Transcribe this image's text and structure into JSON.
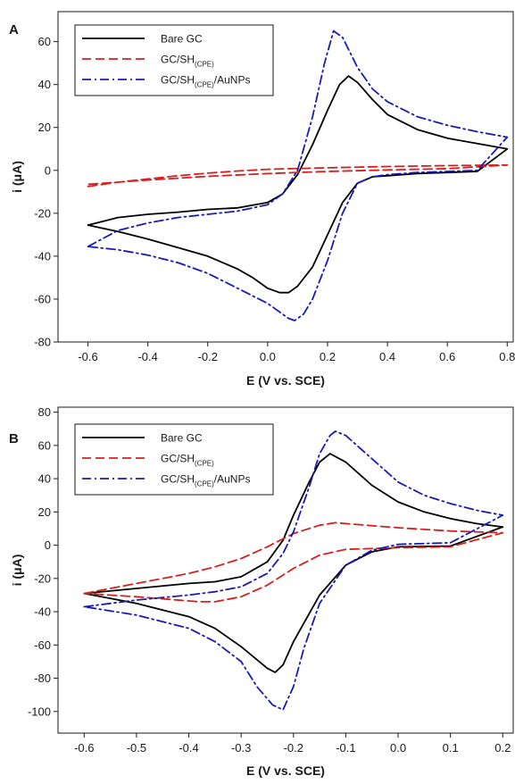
{
  "chart_data": [
    {
      "type": "line",
      "panel_label": "A",
      "xlabel": "E (V vs. SCE)",
      "ylabel": "i (μA)",
      "xlim": [
        -0.7,
        0.82
      ],
      "ylim": [
        -80,
        74
      ],
      "xticks": [
        -0.6,
        -0.4,
        -0.2,
        0.0,
        0.2,
        0.4,
        0.6,
        0.8
      ],
      "xtick_labels": [
        "-0.6",
        "-0.4",
        "-0.2",
        "0.0",
        "0.2",
        "0.4",
        "0.6",
        "0.8"
      ],
      "yticks": [
        -80,
        -60,
        -40,
        -20,
        0,
        20,
        40,
        60
      ],
      "ytick_labels": [
        "-80",
        "-60",
        "-40",
        "-20",
        "0",
        "20",
        "40",
        "60"
      ],
      "legend_position": "top-left",
      "grid": false,
      "series": [
        {
          "name": "Bare GC",
          "color": "#000000",
          "dash": "solid",
          "points": [
            [
              -0.6,
              -25.5
            ],
            [
              -0.5,
              -22
            ],
            [
              -0.4,
              -20.5
            ],
            [
              -0.3,
              -19.5
            ],
            [
              -0.2,
              -18.2
            ],
            [
              -0.1,
              -17.5
            ],
            [
              0.0,
              -15
            ],
            [
              0.05,
              -11
            ],
            [
              0.1,
              -2
            ],
            [
              0.15,
              12
            ],
            [
              0.2,
              28
            ],
            [
              0.24,
              40
            ],
            [
              0.27,
              44
            ],
            [
              0.3,
              41
            ],
            [
              0.35,
              33
            ],
            [
              0.4,
              26
            ],
            [
              0.5,
              19
            ],
            [
              0.6,
              15
            ],
            [
              0.7,
              12.5
            ],
            [
              0.8,
              10
            ],
            [
              0.7,
              -0.5
            ],
            [
              0.6,
              -1
            ],
            [
              0.5,
              -1.5
            ],
            [
              0.4,
              -2.5
            ],
            [
              0.35,
              -3
            ],
            [
              0.3,
              -6
            ],
            [
              0.25,
              -15
            ],
            [
              0.2,
              -30
            ],
            [
              0.15,
              -45
            ],
            [
              0.1,
              -54
            ],
            [
              0.07,
              -57
            ],
            [
              0.04,
              -57
            ],
            [
              0.0,
              -55
            ],
            [
              -0.05,
              -50
            ],
            [
              -0.1,
              -46
            ],
            [
              -0.2,
              -40
            ],
            [
              -0.3,
              -36
            ],
            [
              -0.4,
              -32
            ],
            [
              -0.5,
              -28.5
            ],
            [
              -0.6,
              -25.5
            ]
          ]
        },
        {
          "name": "GC/SH(CPE)",
          "color": "#d62020",
          "dash": "dashed",
          "points": [
            [
              -0.6,
              -7.5
            ],
            [
              -0.5,
              -5.5
            ],
            [
              -0.4,
              -4
            ],
            [
              -0.3,
              -2.5
            ],
            [
              -0.2,
              -1.3
            ],
            [
              -0.1,
              -0.3
            ],
            [
              0.0,
              0.5
            ],
            [
              0.2,
              1.2
            ],
            [
              0.4,
              1.8
            ],
            [
              0.6,
              2.2
            ],
            [
              0.8,
              2.5
            ],
            [
              0.6,
              0.8
            ],
            [
              0.4,
              0.2
            ],
            [
              0.2,
              -0.5
            ],
            [
              0.0,
              -1.5
            ],
            [
              -0.2,
              -2.8
            ],
            [
              -0.4,
              -4.5
            ],
            [
              -0.6,
              -6.5
            ]
          ]
        },
        {
          "name": "GC/SH(CPE)/AuNPs",
          "color": "#1a1ab5",
          "dash": "dashdot",
          "points": [
            [
              -0.6,
              -35.5
            ],
            [
              -0.5,
              -28
            ],
            [
              -0.4,
              -24.5
            ],
            [
              -0.3,
              -22
            ],
            [
              -0.2,
              -20.5
            ],
            [
              -0.1,
              -19
            ],
            [
              0.0,
              -16
            ],
            [
              0.05,
              -11
            ],
            [
              0.1,
              0
            ],
            [
              0.15,
              25
            ],
            [
              0.19,
              50
            ],
            [
              0.22,
              65
            ],
            [
              0.25,
              62
            ],
            [
              0.3,
              48
            ],
            [
              0.35,
              38
            ],
            [
              0.4,
              32
            ],
            [
              0.5,
              25
            ],
            [
              0.6,
              21
            ],
            [
              0.7,
              18
            ],
            [
              0.8,
              15.5
            ],
            [
              0.7,
              0
            ],
            [
              0.6,
              -0.5
            ],
            [
              0.5,
              -1
            ],
            [
              0.4,
              -2
            ],
            [
              0.35,
              -3
            ],
            [
              0.3,
              -6
            ],
            [
              0.25,
              -20
            ],
            [
              0.2,
              -42
            ],
            [
              0.15,
              -60
            ],
            [
              0.12,
              -67
            ],
            [
              0.09,
              -70
            ],
            [
              0.07,
              -69
            ],
            [
              0.04,
              -66
            ],
            [
              0.0,
              -62
            ],
            [
              -0.1,
              -55
            ],
            [
              -0.2,
              -48
            ],
            [
              -0.3,
              -43
            ],
            [
              -0.4,
              -39.5
            ],
            [
              -0.5,
              -37
            ],
            [
              -0.6,
              -35.5
            ]
          ]
        }
      ]
    },
    {
      "type": "line",
      "panel_label": "B",
      "xlabel": "E (V vs. SCE)",
      "ylabel": "i (μA)",
      "xlim": [
        -0.65,
        0.22
      ],
      "ylim": [
        -113,
        83
      ],
      "xticks": [
        -0.6,
        -0.5,
        -0.4,
        -0.3,
        -0.2,
        -0.1,
        0.0,
        0.1,
        0.2
      ],
      "xtick_labels": [
        "-0.6",
        "-0.5",
        "-0.4",
        "-0.3",
        "-0.2",
        "-0.1",
        "0.0",
        "0.1",
        "0.2"
      ],
      "yticks": [
        -100,
        -80,
        -60,
        -40,
        -20,
        0,
        20,
        40,
        60,
        80
      ],
      "ytick_labels": [
        "-100",
        "-80",
        "-60",
        "-40",
        "-20",
        "0",
        "20",
        "40",
        "60",
        "80"
      ],
      "legend_position": "top-left",
      "grid": false,
      "series": [
        {
          "name": "Bare GC",
          "color": "#000000",
          "dash": "solid",
          "points": [
            [
              -0.6,
              -29
            ],
            [
              -0.5,
              -26
            ],
            [
              -0.4,
              -23
            ],
            [
              -0.35,
              -22
            ],
            [
              -0.3,
              -19
            ],
            [
              -0.25,
              -10
            ],
            [
              -0.22,
              3
            ],
            [
              -0.2,
              18
            ],
            [
              -0.17,
              38
            ],
            [
              -0.15,
              50
            ],
            [
              -0.13,
              55
            ],
            [
              -0.1,
              50
            ],
            [
              -0.05,
              36
            ],
            [
              0.0,
              26
            ],
            [
              0.05,
              20
            ],
            [
              0.1,
              16
            ],
            [
              0.15,
              13
            ],
            [
              0.2,
              11
            ],
            [
              0.1,
              -0.5
            ],
            [
              0.0,
              -1
            ],
            [
              -0.05,
              -4
            ],
            [
              -0.1,
              -12
            ],
            [
              -0.15,
              -30
            ],
            [
              -0.2,
              -58
            ],
            [
              -0.22,
              -72
            ],
            [
              -0.235,
              -76.5
            ],
            [
              -0.25,
              -74
            ],
            [
              -0.3,
              -61
            ],
            [
              -0.35,
              -50
            ],
            [
              -0.4,
              -43
            ],
            [
              -0.5,
              -35
            ],
            [
              -0.6,
              -29
            ]
          ]
        },
        {
          "name": "GC/SH(CPE)",
          "color": "#d62020",
          "dash": "dashed",
          "points": [
            [
              -0.6,
              -29
            ],
            [
              -0.5,
              -23
            ],
            [
              -0.4,
              -17
            ],
            [
              -0.35,
              -13
            ],
            [
              -0.3,
              -8
            ],
            [
              -0.25,
              -1
            ],
            [
              -0.2,
              7
            ],
            [
              -0.15,
              12
            ],
            [
              -0.12,
              13.5
            ],
            [
              -0.1,
              13
            ],
            [
              0.0,
              10.5
            ],
            [
              0.1,
              8.5
            ],
            [
              0.2,
              7.5
            ],
            [
              0.1,
              -1
            ],
            [
              0.0,
              -1.5
            ],
            [
              -0.1,
              -2.5
            ],
            [
              -0.15,
              -6
            ],
            [
              -0.2,
              -14
            ],
            [
              -0.25,
              -24
            ],
            [
              -0.3,
              -31
            ],
            [
              -0.35,
              -34
            ],
            [
              -0.38,
              -34
            ],
            [
              -0.4,
              -33.5
            ],
            [
              -0.5,
              -31
            ],
            [
              -0.6,
              -29
            ]
          ]
        },
        {
          "name": "GC/SH(CPE)/AuNPs",
          "color": "#1a1ab5",
          "dash": "dashdot",
          "points": [
            [
              -0.6,
              -37
            ],
            [
              -0.5,
              -33
            ],
            [
              -0.4,
              -30
            ],
            [
              -0.35,
              -28
            ],
            [
              -0.3,
              -25
            ],
            [
              -0.25,
              -17
            ],
            [
              -0.22,
              -5
            ],
            [
              -0.2,
              8
            ],
            [
              -0.17,
              35
            ],
            [
              -0.15,
              55
            ],
            [
              -0.13,
              66
            ],
            [
              -0.12,
              68.5
            ],
            [
              -0.1,
              66
            ],
            [
              -0.05,
              52
            ],
            [
              0.0,
              38
            ],
            [
              0.05,
              30
            ],
            [
              0.1,
              25
            ],
            [
              0.15,
              21
            ],
            [
              0.2,
              18
            ],
            [
              0.1,
              1.5
            ],
            [
              0.0,
              0.5
            ],
            [
              -0.05,
              -3
            ],
            [
              -0.1,
              -12
            ],
            [
              -0.15,
              -35
            ],
            [
              -0.18,
              -62
            ],
            [
              -0.2,
              -85
            ],
            [
              -0.22,
              -99
            ],
            [
              -0.24,
              -96
            ],
            [
              -0.27,
              -85
            ],
            [
              -0.3,
              -70
            ],
            [
              -0.35,
              -58
            ],
            [
              -0.4,
              -50
            ],
            [
              -0.5,
              -42
            ],
            [
              -0.6,
              -37
            ]
          ]
        }
      ]
    }
  ],
  "legend": {
    "bare_label": "Bare GC",
    "sh_base": "GC/SH",
    "sh_sub": "(CPE)",
    "au_suffix": "/AuNPs"
  }
}
